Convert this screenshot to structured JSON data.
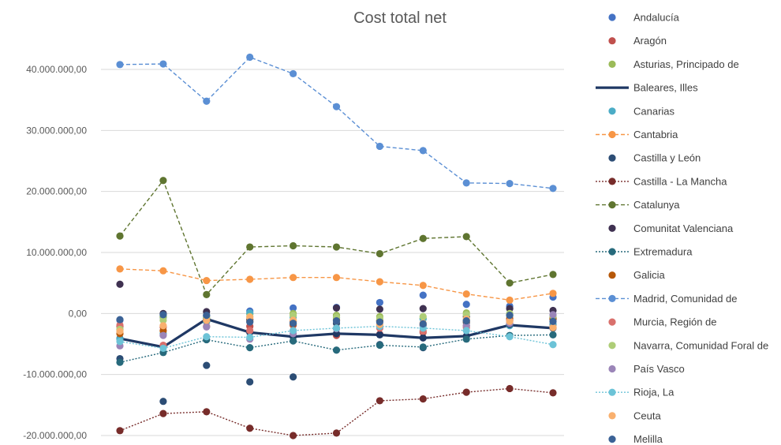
{
  "chart_data": {
    "type": "line",
    "title": "Cost total net",
    "xlabel": "",
    "ylabel": "",
    "ylim": [
      -20000000,
      45000000
    ],
    "yticks": [
      {
        "value": 40000000,
        "label": "40.000.000,00"
      },
      {
        "value": 30000000,
        "label": "30.000.000,00"
      },
      {
        "value": 20000000,
        "label": "20.000.000,00"
      },
      {
        "value": 10000000,
        "label": "10.000.000,00"
      },
      {
        "value": 0,
        "label": "0,00"
      },
      {
        "value": -10000000,
        "label": "-10.000.000,00"
      },
      {
        "value": -20000000,
        "label": "-20.000.000,00"
      }
    ],
    "grid": true,
    "legend": "right",
    "points_per_series": 11,
    "series": [
      {
        "name": "Andalucía",
        "color": "#4472C4",
        "style": "markers",
        "values": [
          -1100000,
          -600000,
          -400000,
          400000,
          900000,
          1000000,
          1800000,
          3000000,
          1500000,
          1200000,
          2700000
        ]
      },
      {
        "name": "Aragón",
        "color": "#C0504D",
        "style": "markers",
        "values": [
          -2100000,
          -2200000,
          -1200000,
          -2100000,
          -1900000,
          -3600000,
          -3400000,
          -3100000,
          -2000000,
          -1100000,
          -1800000
        ]
      },
      {
        "name": "Asturias, Principado de",
        "color": "#9BBB59",
        "style": "markers",
        "values": [
          -2600000,
          -500000,
          -700000,
          -100000,
          0,
          -300000,
          -500000,
          -800000,
          100000,
          -300000,
          -600000
        ]
      },
      {
        "name": "Baleares, Illes",
        "color": "#1F3864",
        "style": "thick",
        "values": [
          -4100000,
          -5500000,
          -900000,
          -3100000,
          -3800000,
          -3300000,
          -3500000,
          -4000000,
          -3700000,
          -1900000,
          -2400000
        ]
      },
      {
        "name": "Canarias",
        "color": "#4BACC6",
        "style": "markers",
        "values": [
          -4200000,
          -3300000,
          -1400000,
          100000,
          -600000,
          -700000,
          -1200000,
          -900000,
          -1100000,
          -2000000,
          -1700000
        ]
      },
      {
        "name": "Cantabria",
        "color": "#F79646",
        "style": "dashed",
        "values": [
          7300000,
          7000000,
          5400000,
          5600000,
          5900000,
          5900000,
          5200000,
          4600000,
          3200000,
          2200000,
          3300000
        ]
      },
      {
        "name": "Castilla y León",
        "color": "#2C4D75",
        "style": "markers",
        "values": [
          -7400000,
          -14400000,
          -8500000,
          -11200000,
          -10400000,
          -1600000,
          -5100000,
          -5600000,
          -1500000,
          -1800000,
          -900000
        ]
      },
      {
        "name": "Castilla - La Mancha",
        "color": "#772C2A",
        "style": "dotted",
        "values": [
          -19200000,
          -16400000,
          -16100000,
          -18800000,
          -20000000,
          -19600000,
          -14300000,
          -14000000,
          -12900000,
          -12300000,
          -13000000
        ]
      },
      {
        "name": "Catalunya",
        "color": "#5F7530",
        "style": "dashed",
        "values": [
          12700000,
          21800000,
          3100000,
          10900000,
          11100000,
          10900000,
          9800000,
          12300000,
          12600000,
          5000000,
          6400000
        ]
      },
      {
        "name": "Comunitat Valenciana",
        "color": "#3F3151",
        "style": "markers",
        "values": [
          4800000,
          0,
          300000,
          -1000000,
          -1300000,
          900000,
          700000,
          800000,
          -500000,
          800000,
          500000
        ]
      },
      {
        "name": "Extremadura",
        "color": "#276A7C",
        "style": "dotted",
        "values": [
          -8000000,
          -6400000,
          -4300000,
          -5600000,
          -4500000,
          -6000000,
          -5200000,
          -5500000,
          -4200000,
          -3600000,
          -3500000
        ]
      },
      {
        "name": "Galicia",
        "color": "#B65708",
        "style": "markers",
        "values": [
          -3300000,
          -2800000,
          -1100000,
          -1300000,
          -1700000,
          -1000000,
          -1200000,
          -1900000,
          -1300000,
          -800000,
          -900000
        ]
      },
      {
        "name": "Madrid, Comunidad de",
        "color": "#5B8FD4",
        "style": "dashed",
        "values": [
          40800000,
          40900000,
          34800000,
          42000000,
          39300000,
          33900000,
          27400000,
          26700000,
          21400000,
          21300000,
          20500000
        ]
      },
      {
        "name": "Murcia, Región de",
        "color": "#D9706C",
        "style": "markers",
        "values": [
          -1900000,
          -5200000,
          -2100000,
          -2800000,
          -2800000,
          -2400000,
          -2400000,
          -2900000,
          -2300000,
          -1200000,
          -2300000
        ]
      },
      {
        "name": "Navarra, Comunidad Foral de",
        "color": "#AECD77",
        "style": "markers",
        "values": [
          -2600000,
          -1100000,
          -700000,
          -500000,
          -300000,
          -600000,
          -800000,
          -500000,
          -200000,
          0,
          -400000
        ]
      },
      {
        "name": "País Vasco",
        "color": "#9B85B8",
        "style": "markers",
        "values": [
          -5300000,
          -3600000,
          -2200000,
          -4200000,
          -3300000,
          -2500000,
          -2100000,
          -2000000,
          -2000000,
          -1600000,
          -200000
        ]
      },
      {
        "name": "Rioja, La",
        "color": "#6CC3D7",
        "style": "dotted",
        "values": [
          -4600000,
          -5700000,
          -3800000,
          -3900000,
          -2800000,
          -2400000,
          -2100000,
          -2400000,
          -2800000,
          -3800000,
          -5100000
        ]
      },
      {
        "name": "Ceuta",
        "color": "#F9B06E",
        "style": "markers",
        "values": [
          -2900000,
          -2000000,
          -1100000,
          -600000,
          -1100000,
          -1200000,
          -1800000,
          -1600000,
          -900000,
          -1300000,
          -2300000
        ]
      },
      {
        "name": "Melilla",
        "color": "#3B6296",
        "style": "markers",
        "values": [
          -1000000,
          -200000,
          -300000,
          -1400000,
          -1600000,
          -1200000,
          -1400000,
          -1700000,
          -1200000,
          -300000,
          -1300000
        ]
      }
    ]
  }
}
